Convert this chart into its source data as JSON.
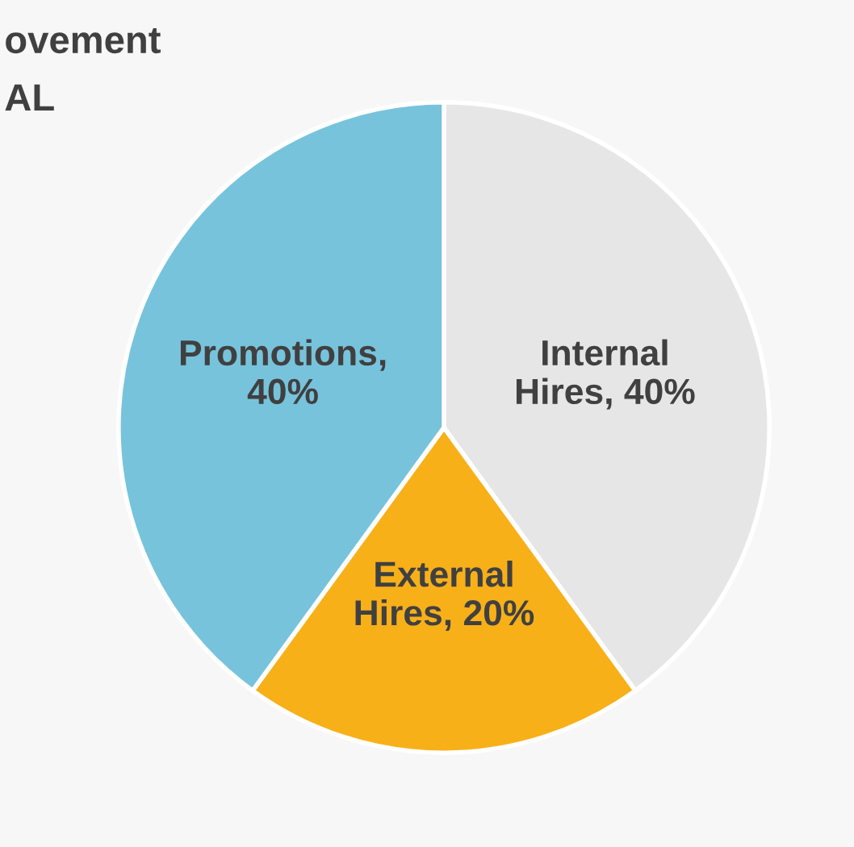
{
  "chart_data": {
    "type": "pie",
    "title": "ovement\nAL",
    "categories": [
      "Internal Hires, 40%",
      "External Hires, 20%",
      "Promotions, 40%"
    ],
    "values": [
      40,
      20,
      40
    ],
    "colors": [
      "#e6e6e6",
      "#f8b019",
      "#77c3dc"
    ]
  }
}
